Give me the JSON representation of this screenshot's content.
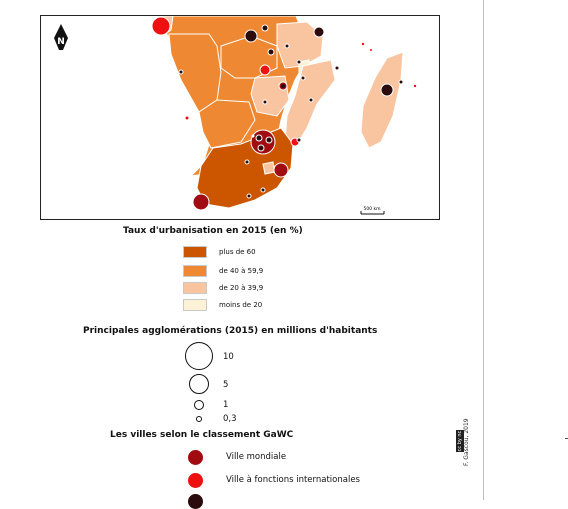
{
  "map": {
    "north_label": "N",
    "scale_label": "500 km",
    "colors": {
      "plus_60": "#cc5500",
      "de_40_59": "#ee8833",
      "de_20_39": "#f9c4a0",
      "moins_20": "#fdf1d6",
      "ville_mondiale": "#a10c12",
      "fonctions_internationales": "#ee1111",
      "autre": "#2b0b0b"
    }
  },
  "legend_urbanisation": {
    "title": "Taux d'urbanisation en 2015 (en %)",
    "classes": [
      {
        "label": "plus de 60",
        "color": "#cc5500"
      },
      {
        "label": "de 40 à 59,9",
        "color": "#ee8833"
      },
      {
        "label": "de 20 à 39,9",
        "color": "#f9c4a0"
      },
      {
        "label": "moins de 20",
        "color": "#fdf1d6"
      }
    ]
  },
  "legend_population": {
    "title": "Principales agglomérations (2015) en millions d'habitants",
    "sizes": [
      "10",
      "5",
      "1",
      "0,3"
    ]
  },
  "legend_gawc": {
    "title": "Les villes selon le classement GaWC",
    "classes": [
      {
        "label": "Ville mondiale",
        "color": "#a10c12"
      },
      {
        "label": "Ville à fonctions internationales",
        "color": "#ee1111"
      }
    ]
  },
  "credit": {
    "author": "F. Gascou, 2019",
    "license": "cc by nc sa"
  }
}
